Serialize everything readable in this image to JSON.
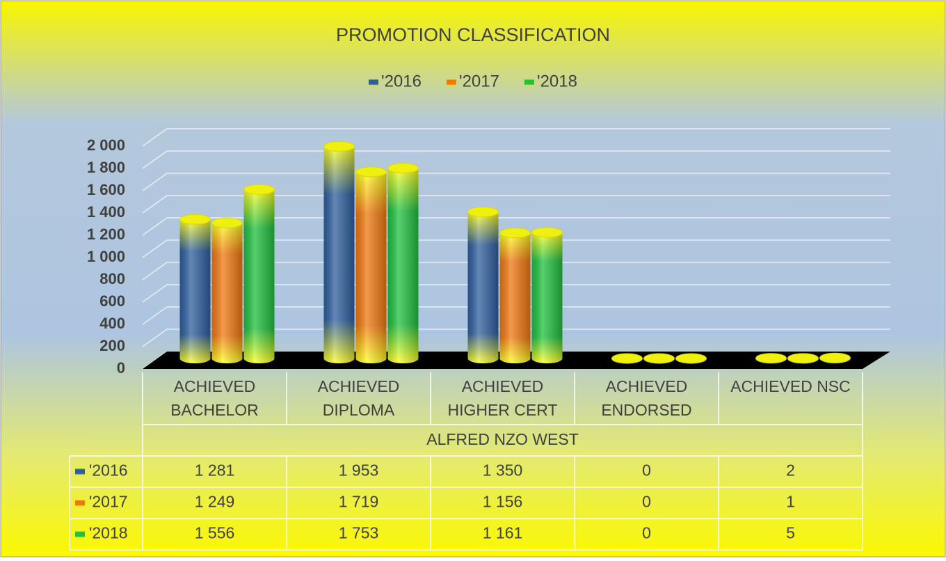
{
  "chart_data": {
    "type": "bar3d",
    "title": "PROMOTION CLASSIFICATION",
    "categories": [
      "ACHIEVED BACHELOR",
      "ACHIEVED DIPLOMA",
      "ACHIEVED HIGHER CERT",
      "ACHIEVED ENDORSED",
      "ACHIEVED NSC"
    ],
    "group_label": "ALFRED NZO WEST",
    "series": [
      {
        "name": "'2016",
        "color": "#2e5fa0",
        "values": [
          1281,
          1953,
          1350,
          0,
          2
        ],
        "value_labels": [
          "1 281",
          "1 953",
          "1 350",
          "0",
          "2"
        ]
      },
      {
        "name": "'2017",
        "color": "#f07810",
        "values": [
          1249,
          1719,
          1156,
          0,
          1
        ],
        "value_labels": [
          "1 249",
          "1 719",
          "1 156",
          "0",
          "1"
        ]
      },
      {
        "name": "'2018",
        "color": "#20c040",
        "values": [
          1556,
          1753,
          1161,
          0,
          5
        ],
        "value_labels": [
          "1 556",
          "1 753",
          "1 161",
          "0",
          "5"
        ]
      }
    ],
    "ylim": [
      0,
      2000
    ],
    "yticks": [
      0,
      200,
      400,
      600,
      800,
      {
        "value": 1000,
        "label": "1 000"
      },
      {
        "value": 1200,
        "label": "1 200"
      },
      {
        "value": 1400,
        "label": "1 400"
      },
      {
        "value": 1600,
        "label": "1 600"
      },
      {
        "value": 1800,
        "label": "1 800"
      },
      {
        "value": 2000,
        "label": "2 000"
      }
    ],
    "grid": true,
    "legend": "top"
  }
}
